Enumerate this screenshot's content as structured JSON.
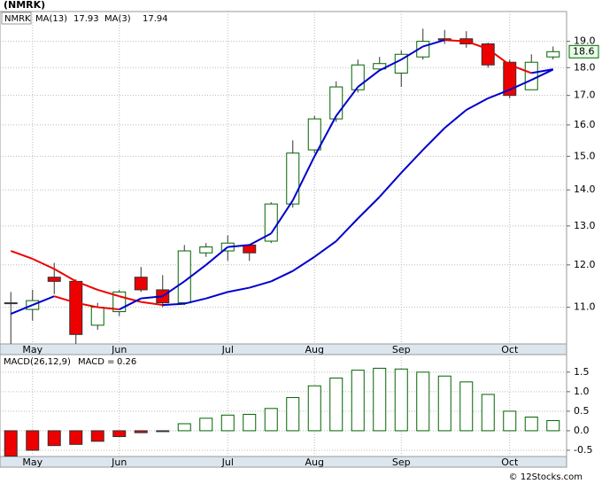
{
  "chart_data": [
    {
      "type": "candlestick",
      "title": "(NMRK)",
      "symbol": "NMRK",
      "categories": [
        null,
        "May",
        null,
        null,
        null,
        "Jun",
        null,
        null,
        null,
        null,
        "Jul",
        null,
        null,
        null,
        "Aug",
        null,
        null,
        null,
        "Sep",
        null,
        null,
        null,
        null,
        "Oct",
        null,
        null
      ],
      "open": [
        11.1,
        10.95,
        11.7,
        11.6,
        10.6,
        10.9,
        11.7,
        11.4,
        11.1,
        12.3,
        12.35,
        12.5,
        12.6,
        13.6,
        15.2,
        16.2,
        17.2,
        17.95,
        17.8,
        18.4,
        19.1,
        19.1,
        18.9,
        18.2,
        17.2,
        18.4
      ],
      "high": [
        11.35,
        11.4,
        12.05,
        11.65,
        11.1,
        11.4,
        11.95,
        11.75,
        12.5,
        12.55,
        12.75,
        12.5,
        13.65,
        15.5,
        16.3,
        17.5,
        18.3,
        18.4,
        18.65,
        19.5,
        19.45,
        19.4,
        18.95,
        18.3,
        18.5,
        18.8
      ],
      "low": [
        10.2,
        10.7,
        11.3,
        10.2,
        10.5,
        10.8,
        11.35,
        11.0,
        11.05,
        12.2,
        12.1,
        12.1,
        12.55,
        13.5,
        15.1,
        16.1,
        17.1,
        17.9,
        17.3,
        18.3,
        18.9,
        18.75,
        18.0,
        16.9,
        17.2,
        18.3
      ],
      "close": [
        11.08,
        11.15,
        11.6,
        10.4,
        11.0,
        11.35,
        11.4,
        11.1,
        12.35,
        12.45,
        12.55,
        12.3,
        13.6,
        15.1,
        16.2,
        17.3,
        18.1,
        18.15,
        18.5,
        19.0,
        19.05,
        18.9,
        18.1,
        17.0,
        18.2,
        18.6
      ],
      "up_color": "#006400",
      "down_color": "#ee0000",
      "series": [
        {
          "name": "MA(13)",
          "last": 17.93,
          "color_up": "#0000cc",
          "color_down": "#ee0000",
          "values": [
            12.35,
            12.15,
            11.9,
            11.6,
            11.4,
            11.25,
            11.12,
            11.05,
            11.08,
            11.2,
            11.35,
            11.45,
            11.6,
            11.85,
            12.2,
            12.6,
            13.2,
            13.8,
            14.5,
            15.2,
            15.9,
            16.5,
            16.9,
            17.2,
            17.55,
            17.93
          ]
        },
        {
          "name": "MA(3)",
          "last": 17.94,
          "color_up": "#0000cc",
          "color_down": "#ee0000",
          "values": [
            10.85,
            11.05,
            11.25,
            11.1,
            11.0,
            10.95,
            11.2,
            11.25,
            11.6,
            12.0,
            12.45,
            12.5,
            12.8,
            13.7,
            15.0,
            16.3,
            17.3,
            17.9,
            18.3,
            18.8,
            19.05,
            19.0,
            18.7,
            18.1,
            17.8,
            17.94
          ]
        }
      ],
      "last_price": 18.6,
      "log_scale": true,
      "grid": true,
      "ylim": [
        10.2,
        20.2
      ],
      "yticks": [
        {
          "value": 11,
          "label": "11.0"
        },
        {
          "value": 12,
          "label": "12.0"
        },
        {
          "value": 13,
          "label": "13.0"
        },
        {
          "value": 14,
          "label": "14.0"
        },
        {
          "value": 15,
          "label": "15.0"
        },
        {
          "value": 16,
          "label": "16.0"
        },
        {
          "value": 17,
          "label": "17.0"
        },
        {
          "value": 18,
          "label": "18.0"
        },
        {
          "value": 19,
          "label": "19.0"
        }
      ]
    },
    {
      "type": "bar",
      "title": "MACD(26,12,9)",
      "indicator": {
        "name": "MACD =",
        "value": 0.26
      },
      "categories": [
        null,
        "May",
        null,
        null,
        null,
        "Jun",
        null,
        null,
        null,
        null,
        "Jul",
        null,
        null,
        null,
        "Aug",
        null,
        null,
        null,
        "Sep",
        null,
        null,
        null,
        null,
        "Oct",
        null,
        null
      ],
      "values": [
        -0.65,
        -0.5,
        -0.38,
        -0.35,
        -0.27,
        -0.15,
        -0.05,
        -0.02,
        0.18,
        0.32,
        0.4,
        0.42,
        0.57,
        0.85,
        1.15,
        1.35,
        1.55,
        1.6,
        1.58,
        1.5,
        1.4,
        1.25,
        0.93,
        0.5,
        0.35,
        0.26
      ],
      "up_color": "#006400",
      "down_color": "#ee0000",
      "grid": true,
      "ylim": [
        -0.66,
        1.95
      ],
      "yticks": [
        {
          "value": 1.5,
          "label": "1.5"
        },
        {
          "value": 1,
          "label": "1.0"
        },
        {
          "value": 0.5,
          "label": "0.5"
        },
        {
          "value": 0,
          "label": "0.0"
        },
        -0.5
      ]
    }
  ],
  "footer": "© 12Stocks.com"
}
